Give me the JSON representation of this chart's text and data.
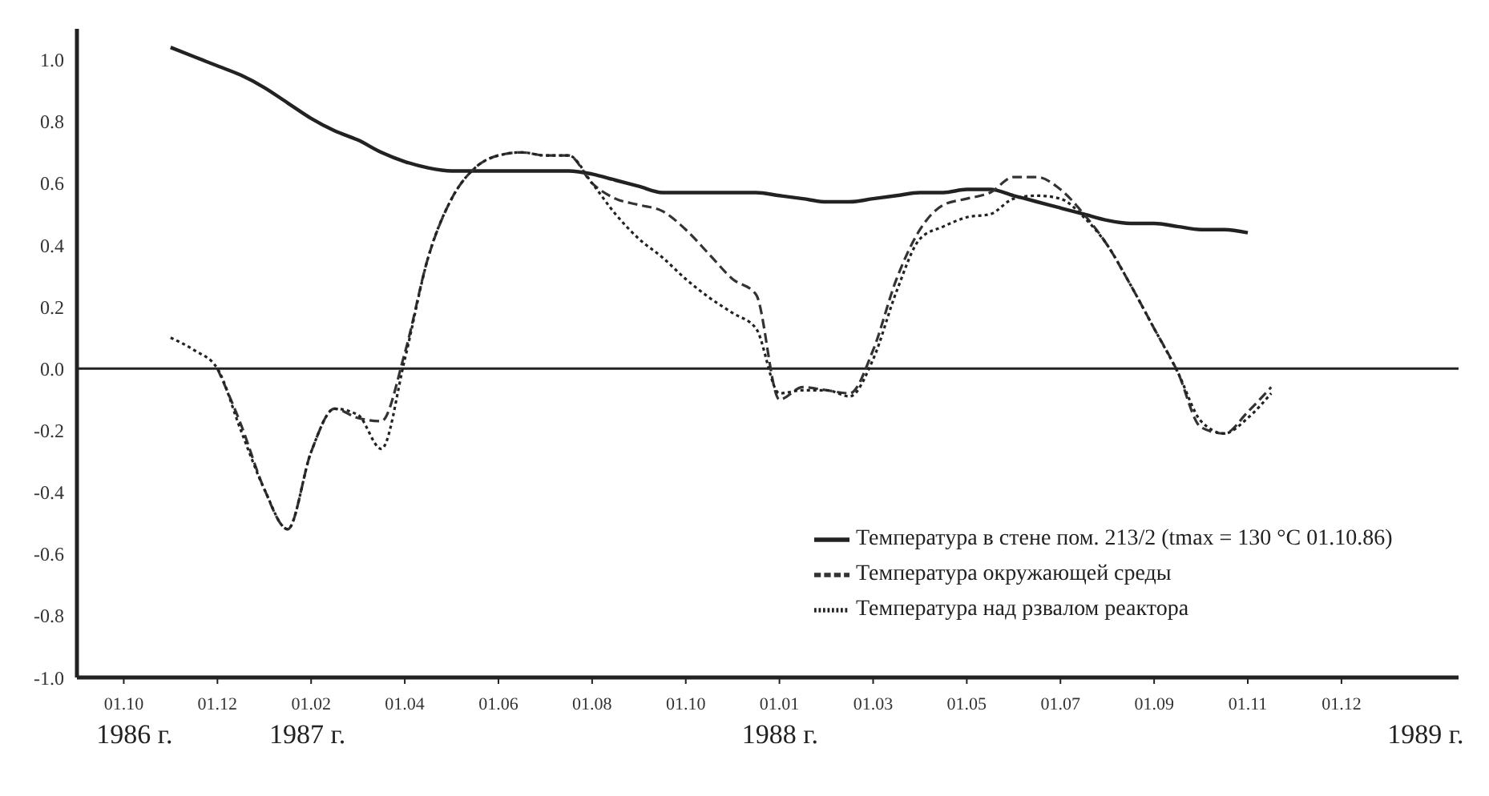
{
  "chart_data": {
    "type": "line",
    "legend": "bottom right",
    "marker": "none",
    "categories": [
      null,
      null,
      "01.10",
      null,
      null,
      null,
      "01.12",
      null,
      null,
      null,
      "01.02",
      null,
      null,
      null,
      "01.04",
      null,
      null,
      null,
      "01.06",
      null,
      null,
      null,
      "01.08",
      null,
      null,
      null,
      "01.10",
      null,
      null,
      null,
      "01.01",
      null,
      null,
      null,
      "01.03",
      null,
      null,
      null,
      "01.05",
      null,
      null,
      null,
      "01.07",
      null,
      null,
      null,
      "01.09",
      null,
      null,
      null,
      "01.11",
      null,
      null,
      null,
      "01.12",
      null,
      null,
      null,
      null,
      null
    ],
    "annotations": [
      "1986 г.",
      "1987 г.",
      "1988 г.",
      "1989 г."
    ],
    "ylim": [
      -1.0,
      1.1
    ],
    "yticks": [
      {
        "value": -1,
        "label": "-1.0"
      },
      {
        "value": -0.8,
        "label": "-0.8"
      },
      {
        "value": -0.6,
        "label": "-0.6"
      },
      {
        "value": -0.4,
        "label": "-0.4"
      },
      {
        "value": -0.2,
        "label": "-0.2"
      },
      {
        "value": 0,
        "label": "0.0"
      },
      {
        "value": 0.2,
        "label": "0.2"
      },
      {
        "value": 0.4,
        "label": "0.4"
      },
      {
        "value": 0.6,
        "label": "0.6"
      },
      {
        "value": 0.8,
        "label": "0.8"
      },
      {
        "value": 1,
        "label": "1.0"
      }
    ],
    "ref_lines": [
      {
        "axis": "y",
        "value": 0,
        "color": "#222222"
      }
    ],
    "series": [
      {
        "name": "Температура в стене пом. 213/2 (tmax = 130 °C 01.10.86)",
        "color": "#222222",
        "line_style": "solid",
        "values": [
          null,
          null,
          null,
          null,
          1.04,
          1.01,
          0.98,
          0.95,
          0.91,
          0.86,
          0.81,
          0.77,
          0.74,
          0.7,
          0.67,
          0.65,
          0.64,
          0.64,
          0.64,
          0.64,
          0.64,
          0.64,
          0.63,
          0.61,
          0.59,
          0.57,
          0.57,
          0.57,
          0.57,
          0.57,
          0.56,
          0.55,
          0.54,
          0.54,
          0.55,
          0.56,
          0.57,
          0.57,
          0.58,
          0.58,
          0.56,
          0.54,
          0.52,
          0.5,
          0.48,
          0.47,
          0.47,
          0.46,
          0.45,
          0.45,
          0.44,
          null,
          null,
          null,
          null,
          null,
          null,
          null,
          null,
          null
        ]
      },
      {
        "name": "Температура окружающей среды",
        "color": "#333333",
        "line_style": "dashed",
        "values": [
          null,
          null,
          null,
          null,
          null,
          null,
          0.0,
          -0.18,
          -0.39,
          -0.52,
          -0.27,
          -0.13,
          -0.16,
          -0.17,
          0.05,
          0.36,
          0.55,
          0.65,
          0.69,
          0.7,
          0.69,
          0.69,
          0.6,
          0.55,
          0.53,
          0.51,
          0.45,
          0.37,
          0.29,
          0.24,
          -0.1,
          -0.06,
          -0.07,
          -0.08,
          0.06,
          0.29,
          0.45,
          0.53,
          0.55,
          0.57,
          0.62,
          0.62,
          0.58,
          0.5,
          0.4,
          0.27,
          0.13,
          -0.01,
          -0.19,
          -0.21,
          -0.14,
          -0.06,
          null,
          null,
          null,
          null,
          null,
          null,
          null,
          null
        ]
      },
      {
        "name": "Температура над рзвалом реактора",
        "color": "#222222",
        "line_style": "dotted",
        "values": [
          null,
          null,
          null,
          null,
          0.1,
          0.06,
          0.0,
          -0.2,
          -0.39,
          -0.52,
          -0.27,
          -0.13,
          -0.15,
          -0.26,
          0.03,
          0.36,
          0.55,
          0.65,
          0.69,
          0.7,
          0.69,
          0.69,
          0.6,
          0.5,
          0.42,
          0.36,
          0.29,
          0.23,
          0.18,
          0.13,
          -0.08,
          -0.07,
          -0.07,
          -0.09,
          0.03,
          0.25,
          0.42,
          0.46,
          0.49,
          0.5,
          0.55,
          0.56,
          0.55,
          0.49,
          0.4,
          0.27,
          0.13,
          -0.01,
          -0.17,
          -0.21,
          -0.16,
          -0.08,
          null,
          null,
          null,
          null,
          null,
          null,
          null,
          null
        ]
      }
    ]
  }
}
